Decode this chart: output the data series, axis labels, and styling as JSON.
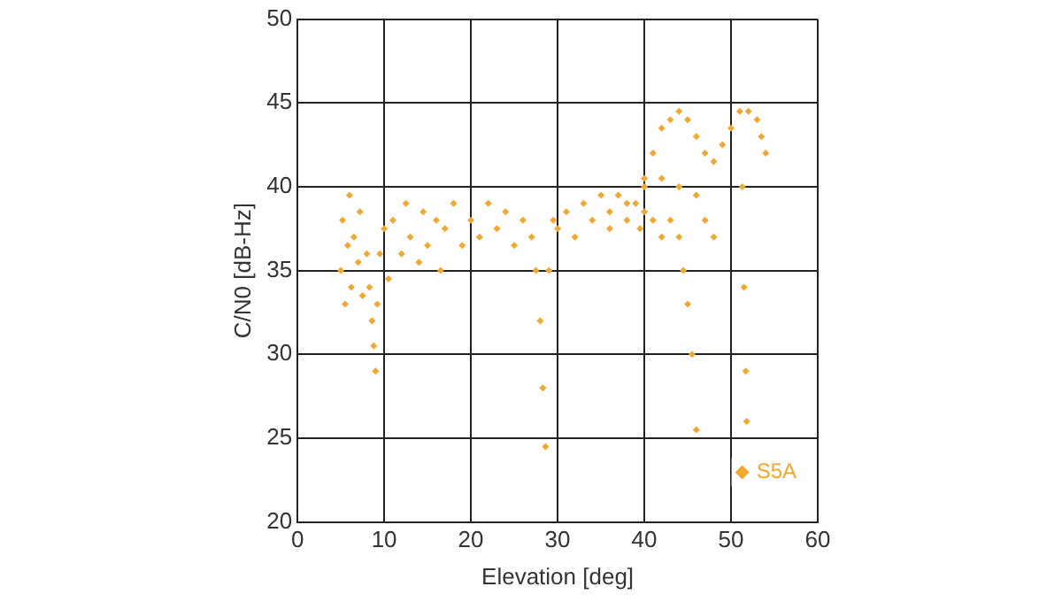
{
  "chart_data": {
    "type": "scatter",
    "xlabel": "Elevation [deg]",
    "ylabel": "C/N0 [dB-Hz]",
    "xlim": [
      0,
      60
    ],
    "xticks": [
      0,
      10,
      20,
      30,
      40,
      50,
      60
    ],
    "ylim": [
      20,
      50
    ],
    "yticks": [
      20,
      25,
      30,
      35,
      40,
      45,
      50
    ],
    "grid": true,
    "legend": "bottom right",
    "marker": "diamond",
    "series": [
      {
        "name": "S5A",
        "color": "#f0a830",
        "x": [
          5,
          5.2,
          5.5,
          5.8,
          6,
          6.2,
          6.5,
          7,
          7.2,
          7.5,
          8,
          8.3,
          8.6,
          8.8,
          9,
          9.2,
          9.5,
          10,
          10.5,
          11,
          12,
          12.5,
          13,
          14,
          14.5,
          15,
          16,
          16.5,
          17,
          18,
          19,
          20,
          21,
          22,
          23,
          24,
          25,
          26,
          27,
          27.5,
          28,
          28.3,
          28.6,
          29,
          29.5,
          30,
          31,
          32,
          33,
          34,
          35,
          36,
          37,
          38,
          39,
          39.5,
          40,
          41,
          42,
          43,
          44,
          44.5,
          45,
          45.5,
          46,
          36,
          38,
          40,
          41,
          42,
          43,
          44,
          45,
          46,
          47,
          48,
          49,
          50,
          51,
          51.3,
          51.5,
          51.7,
          51.8,
          52,
          53,
          53.5,
          54,
          40,
          42,
          44,
          46,
          47,
          48
        ],
        "values": [
          35,
          38,
          33,
          36.5,
          39.5,
          34,
          37,
          35.5,
          38.5,
          33.5,
          36,
          34,
          32,
          30.5,
          29,
          33,
          36,
          37.5,
          34.5,
          38,
          36,
          39,
          37,
          35.5,
          38.5,
          36.5,
          38,
          35,
          37.5,
          39,
          36.5,
          38,
          37,
          39,
          37.5,
          38.5,
          36.5,
          38,
          37,
          35,
          32,
          28,
          24.5,
          35,
          38,
          37.5,
          38.5,
          37,
          39,
          38,
          39.5,
          38.5,
          39.5,
          38,
          39,
          37.5,
          38.5,
          38,
          37,
          38,
          37,
          35,
          33,
          30,
          25.5,
          37.5,
          39,
          40.5,
          42,
          43.5,
          44,
          44.5,
          44,
          43,
          42,
          41.5,
          42.5,
          43.5,
          44.5,
          40,
          34,
          29,
          26,
          44.5,
          44,
          43,
          42,
          40,
          40.5,
          40,
          39.5,
          38,
          37
        ]
      }
    ]
  }
}
